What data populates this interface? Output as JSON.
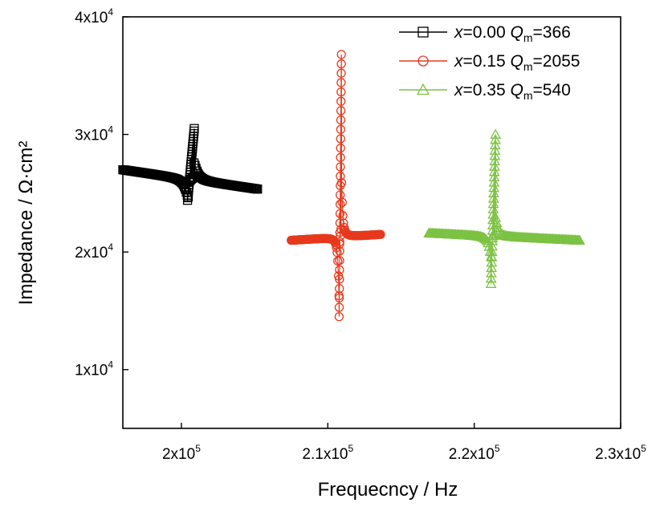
{
  "chart_data": {
    "type": "scatter",
    "title": "",
    "xlabel": "Frequecncy / Hz",
    "ylabel": "Impedance / Ω·cm²",
    "xlim": [
      196000,
      230000
    ],
    "ylim": [
      5000,
      40000
    ],
    "x_ticks": [
      {
        "value": 200000,
        "label": "2x10",
        "exp": "5"
      },
      {
        "value": 210000,
        "label": "2.1x10",
        "exp": "5"
      },
      {
        "value": 220000,
        "label": "2.2x10",
        "exp": "5"
      },
      {
        "value": 230000,
        "label": "2.3x10",
        "exp": "5"
      }
    ],
    "y_ticks": [
      {
        "value": 10000,
        "label": "1x10",
        "exp": "4"
      },
      {
        "value": 20000,
        "label": "2x10",
        "exp": "4"
      },
      {
        "value": 30000,
        "label": "3x10",
        "exp": "4"
      },
      {
        "value": 40000,
        "label": "4x10",
        "exp": "4"
      }
    ],
    "grid": false,
    "legend_position": "top-right",
    "series": [
      {
        "name": "x=0.00 Qm=366",
        "label_x": "x",
        "label_x_val": "=0.00",
        "label_q": "Q",
        "label_q_sub": "m",
        "label_q_val": "=366",
        "color": "#000000",
        "marker": "square",
        "fr": 200500,
        "fa": 200800,
        "fstart": 196000,
        "fend": 205200,
        "z0": 27000,
        "slope": -180,
        "swing": 3000,
        "zmin": 24400,
        "zmax": 30500
      },
      {
        "name": "x=0.15 Qm=2055",
        "label_x": "x",
        "label_x_val": "=0.15",
        "label_q": "Q",
        "label_q_sub": "m",
        "label_q_val": "=2055",
        "color": "#e8391d",
        "marker": "circle",
        "fr": 210800,
        "fa": 210900,
        "fstart": 207500,
        "fend": 213600,
        "z0": 21000,
        "slope": 80,
        "swing": 11000,
        "zmin": 14500,
        "zmax": 36800
      },
      {
        "name": "x=0.35 Qm=540",
        "label_x": "x",
        "label_x_val": "=0.35",
        "label_q": "Q",
        "label_q_sub": "m",
        "label_q_val": "=540",
        "color": "#7cc243",
        "marker": "triangle",
        "fr": 221200,
        "fa": 221400,
        "fstart": 216900,
        "fend": 227200,
        "z0": 21600,
        "slope": -60,
        "swing": 3500,
        "zmin": 17300,
        "zmax": 30000
      }
    ]
  }
}
